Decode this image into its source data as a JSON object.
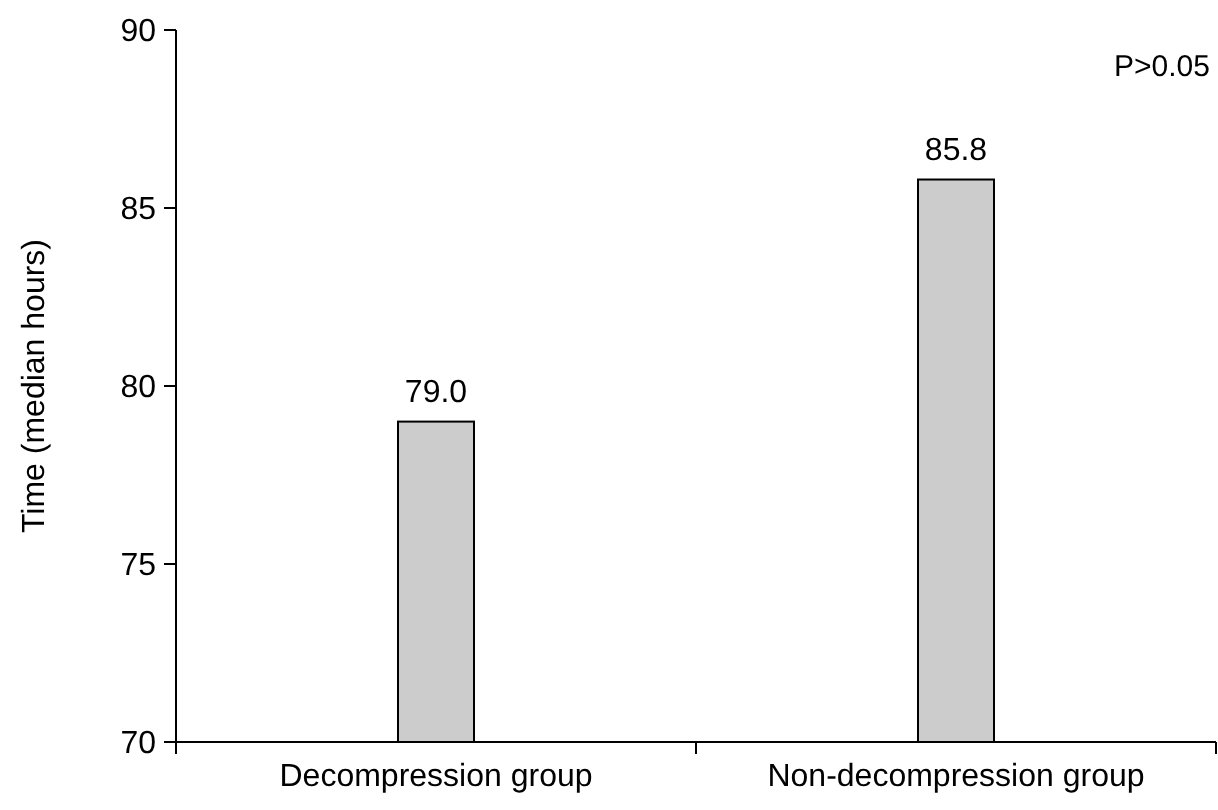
{
  "chart_data": {
    "type": "bar",
    "ylabel": "Time (median hours)",
    "categories": [
      "Decompression group",
      "Non-decompression group"
    ],
    "values": [
      79.0,
      85.8
    ],
    "value_labels": [
      "79.0",
      "85.8"
    ],
    "color": "#cccccc",
    "ylim": [
      70,
      90
    ],
    "yticks": [
      70,
      75,
      80,
      85,
      90
    ],
    "grid": false,
    "annotations": [
      "P>0.05"
    ]
  }
}
